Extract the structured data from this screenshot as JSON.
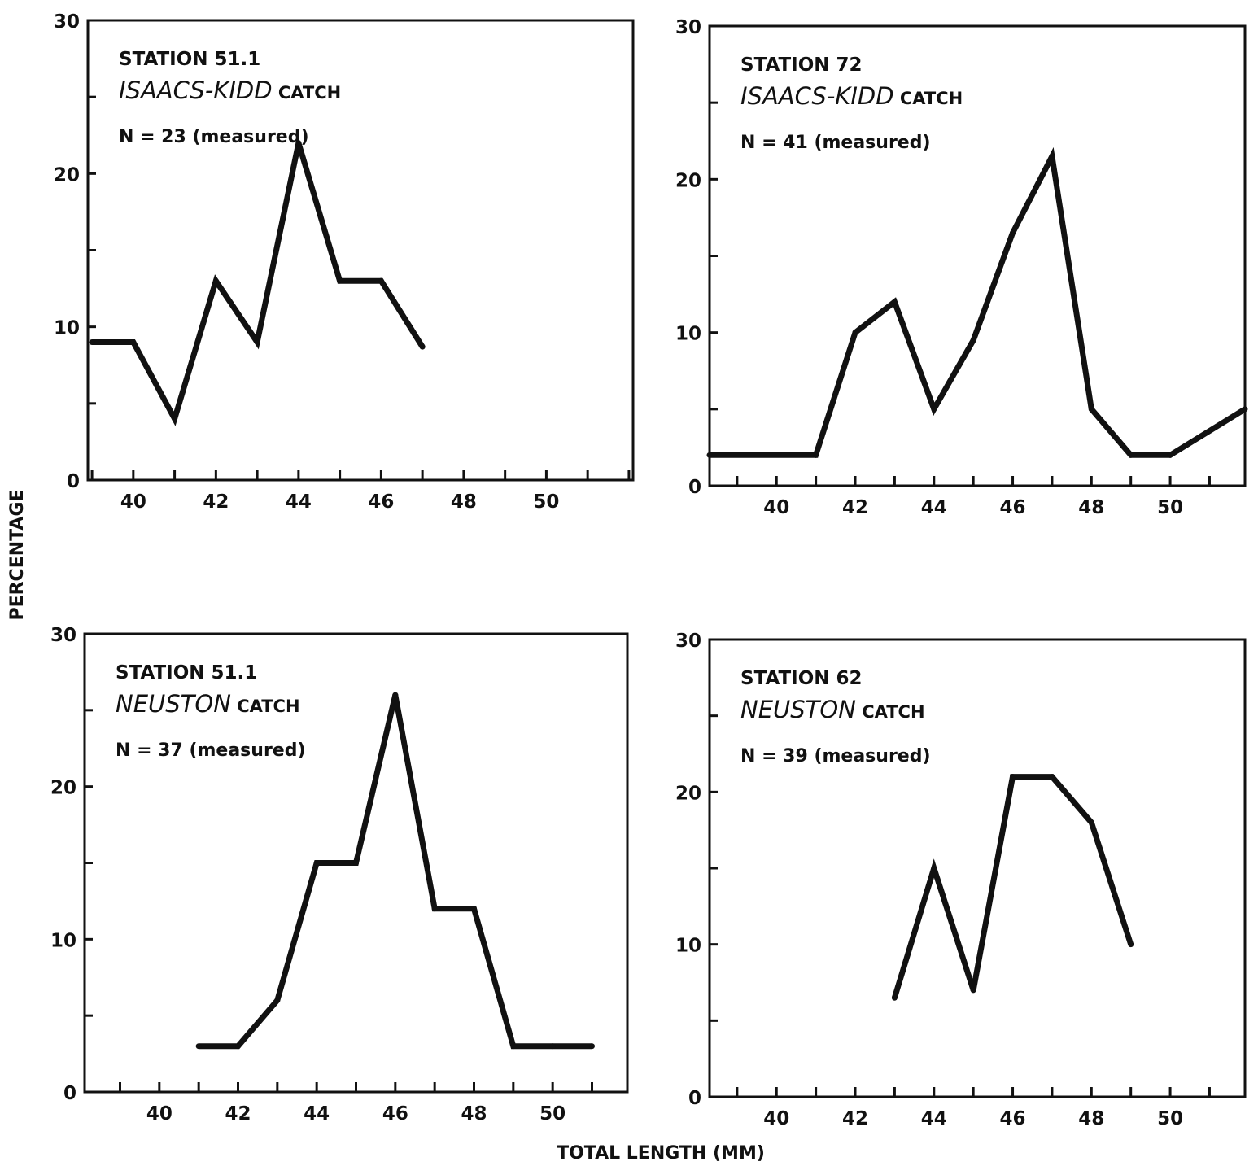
{
  "figure": {
    "ylabel": "PERCENTAGE",
    "xlabel": "TOTAL LENGTH (MM)"
  },
  "chart_data": [
    {
      "type": "line",
      "annotation": {
        "line1": "STATION 51.1",
        "line2_italic": "ISAACS-KIDD",
        "line2_rest": " CATCH",
        "line3": "N = 23 (measured)"
      },
      "x": [
        39,
        40,
        41,
        42,
        43,
        44,
        45,
        46,
        47
      ],
      "y": [
        9,
        9,
        4,
        13,
        9,
        22,
        13,
        13,
        8.7
      ],
      "xlim": [
        38.9,
        52.1
      ],
      "ylim": [
        0,
        30
      ],
      "xticks": [
        40,
        42,
        44,
        46,
        48,
        50
      ],
      "yticks": [
        0,
        10,
        20,
        30
      ],
      "grid": false
    },
    {
      "type": "line",
      "annotation": {
        "line1": "STATION 72",
        "line2_italic": "ISAACS-KIDD",
        "line2_rest": " CATCH",
        "line3": "N = 41 (measured)"
      },
      "x": [
        38.3,
        41,
        42,
        43,
        44,
        45,
        46,
        47,
        48,
        49,
        50,
        51.9
      ],
      "y": [
        2,
        2,
        10,
        12,
        5,
        9.5,
        16.5,
        21.5,
        5,
        2,
        2,
        5
      ],
      "xlim": [
        38.3,
        51.9
      ],
      "ylim": [
        0,
        30
      ],
      "xticks": [
        40,
        42,
        44,
        46,
        48,
        50
      ],
      "yticks": [
        0,
        10,
        20,
        30
      ],
      "grid": false
    },
    {
      "type": "line",
      "annotation": {
        "line1": "STATION 51.1",
        "line2_italic": "NEUSTON",
        "line2_rest": " CATCH",
        "line3": "N = 37 (measured)"
      },
      "x": [
        41,
        42,
        43,
        44,
        45,
        46,
        47,
        48,
        49,
        50,
        51
      ],
      "y": [
        3,
        3,
        6,
        15,
        15,
        26,
        12,
        12,
        3,
        3,
        3
      ],
      "xlim": [
        38.1,
        51.9
      ],
      "ylim": [
        0,
        30
      ],
      "xticks": [
        40,
        42,
        44,
        46,
        48,
        50
      ],
      "yticks": [
        0,
        10,
        20,
        30
      ],
      "grid": false
    },
    {
      "type": "line",
      "annotation": {
        "line1": "STATION 62",
        "line2_italic": "NEUSTON",
        "line2_rest": " CATCH",
        "line3": "N = 39 (measured)"
      },
      "x": [
        43,
        44,
        45,
        46,
        47,
        48,
        49
      ],
      "y": [
        6.5,
        15,
        7,
        21,
        21,
        18,
        10
      ],
      "xlim": [
        38.3,
        51.9
      ],
      "ylim": [
        0,
        30
      ],
      "xticks": [
        40,
        42,
        44,
        46,
        48,
        50
      ],
      "yticks": [
        0,
        10,
        20,
        30
      ],
      "grid": false
    }
  ]
}
